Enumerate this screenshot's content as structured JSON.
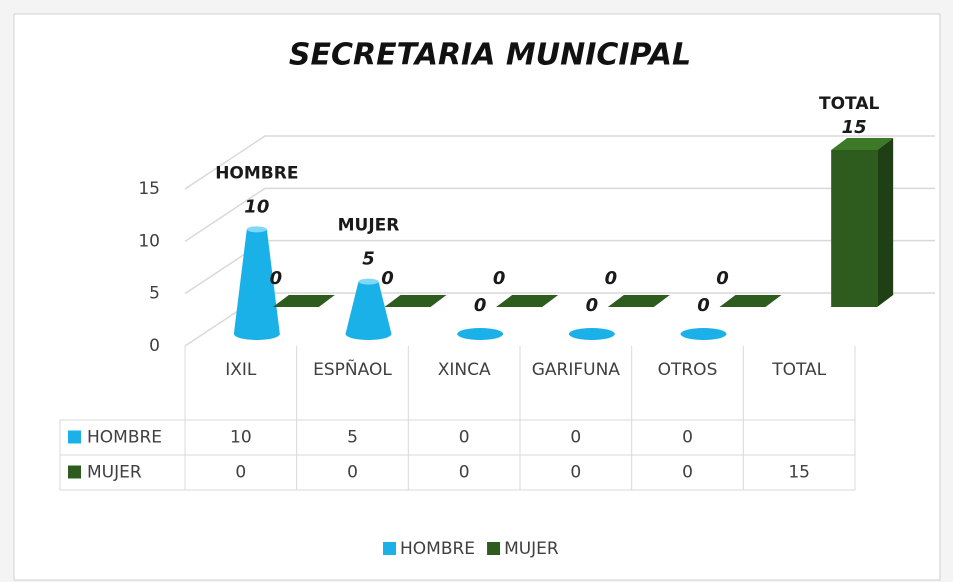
{
  "chart_data": {
    "type": "bar3d",
    "title": "SECRETARIA MUNICIPAL",
    "categories": [
      "IXIL",
      "ESPÑAOL",
      "XINCA",
      "GARIFUNA",
      "OTROS",
      "TOTAL"
    ],
    "series": [
      {
        "name": "HOMBRE",
        "color": "#1ab0e8",
        "values": [
          10,
          5,
          0,
          0,
          0,
          null
        ]
      },
      {
        "name": "MUJER",
        "color": "#2e5c1e",
        "values": [
          0,
          0,
          0,
          0,
          0,
          15
        ]
      }
    ],
    "annotations": [
      "HOMBRE",
      "MUJER",
      "TOTAL"
    ],
    "ylim": [
      0,
      15
    ],
    "yticks": [
      0,
      5,
      10,
      15
    ],
    "grid": true
  }
}
